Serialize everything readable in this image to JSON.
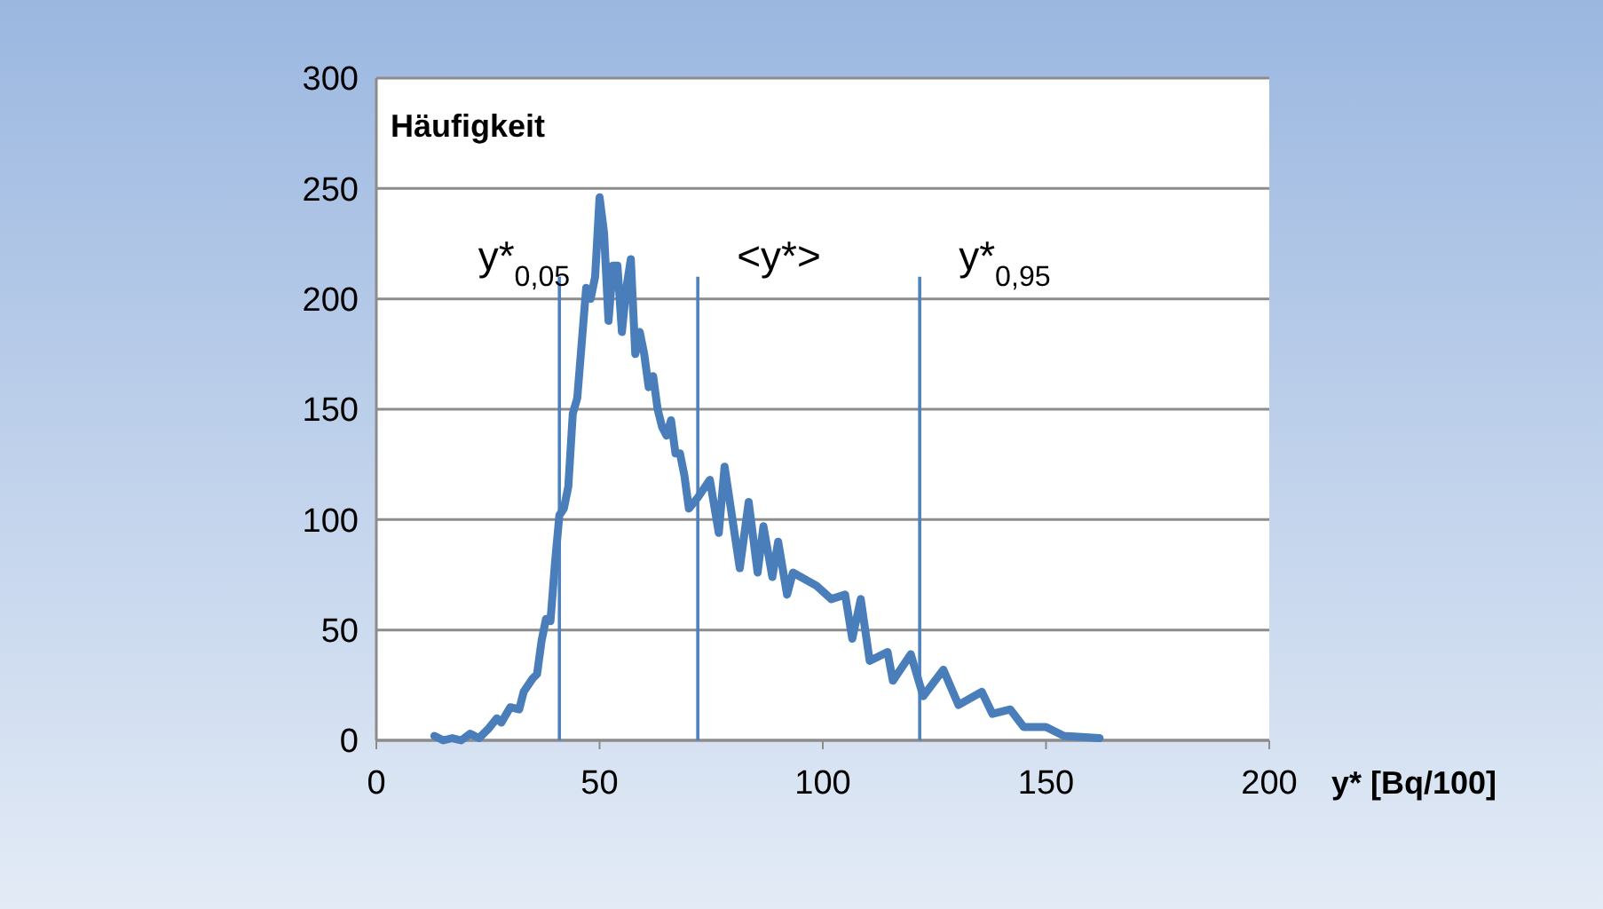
{
  "chart_data": {
    "type": "line",
    "ylabel": "Häufigkeit",
    "xlabel": "y* [Bq/100]",
    "xlim": [
      0,
      200
    ],
    "xticks": [
      0,
      50,
      100,
      150,
      200
    ],
    "ylim": [
      0,
      300
    ],
    "yticks": [
      0,
      50,
      100,
      150,
      200,
      250,
      300
    ],
    "grid": "y",
    "line_style": "solid",
    "series": [
      {
        "color": "#4a7ebb",
        "x": [
          13,
          15,
          17,
          19,
          21,
          23,
          25,
          27,
          28,
          30,
          32,
          33,
          35,
          36,
          37,
          38,
          39,
          40,
          41,
          42,
          43,
          44,
          45,
          46,
          47,
          48,
          49,
          50,
          51,
          52,
          53,
          54,
          55,
          56,
          57,
          58,
          59,
          60,
          61,
          62,
          63,
          64,
          65,
          66,
          67,
          68,
          69,
          70,
          72,
          74.7,
          76.7,
          78,
          81.4,
          83.4,
          85.4,
          86.7,
          88.7,
          90,
          92,
          93.3,
          98.6,
          101.9,
          105,
          106.6,
          108.5,
          110.5,
          114.5,
          115.7,
          119.7,
          122.5,
          127,
          130.4,
          135.6,
          138,
          142,
          145,
          150,
          154,
          162
        ],
        "values": [
          2,
          0,
          1,
          0,
          3,
          1,
          5,
          10,
          8,
          15,
          14,
          22,
          28,
          30,
          45,
          55,
          54,
          80,
          102,
          105,
          115,
          148,
          155,
          180,
          205,
          200,
          210,
          246,
          230,
          190,
          215,
          215,
          185,
          205,
          218,
          175,
          185,
          175,
          160,
          165,
          150,
          142,
          138,
          145,
          130,
          130,
          120,
          105,
          110,
          118,
          94,
          124,
          78,
          108,
          76,
          97,
          74,
          90,
          66,
          76,
          70,
          64,
          66,
          46,
          64,
          36,
          40,
          27,
          39,
          20,
          32,
          16,
          22,
          12,
          14,
          6,
          6,
          2,
          1
        ]
      }
    ],
    "ref_lines": [
      {
        "axis": "x",
        "value": 41,
        "label": "y*$_{0,05}$",
        "color": "#4f81bd"
      },
      {
        "axis": "x",
        "value": 72,
        "label": "<y*>",
        "color": "#4f81bd"
      },
      {
        "axis": "x",
        "value": 121.7,
        "label": "y*$_{0,95}$",
        "color": "#4f81bd"
      }
    ]
  }
}
